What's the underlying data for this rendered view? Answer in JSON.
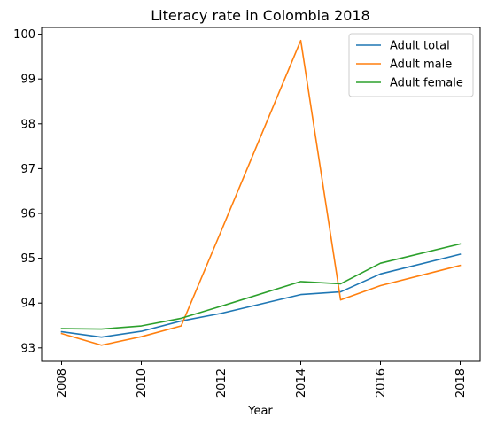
{
  "chart_data": {
    "type": "line",
    "title": "Literacy rate in Colombia 2018",
    "xlabel": "Year",
    "ylabel": "",
    "x": [
      2008,
      2009,
      2010,
      2011,
      2012,
      2014,
      2015,
      2016,
      2018
    ],
    "xticks": [
      "2008",
      "2010",
      "2012",
      "2014",
      "2016",
      "2018"
    ],
    "yticks": [
      "93",
      "94",
      "95",
      "96",
      "97",
      "98",
      "99",
      "100"
    ],
    "xlim": [
      2007.5,
      2018.5
    ],
    "ylim": [
      92.7,
      100.15
    ],
    "legend_position": "top-right",
    "grid": false,
    "series": [
      {
        "name": "Adult total",
        "color": "#1f77b4",
        "values": [
          93.36,
          93.24,
          93.37,
          93.6,
          93.77,
          94.19,
          94.25,
          94.65,
          95.09
        ]
      },
      {
        "name": "Adult male",
        "color": "#ff7f0e",
        "values": [
          93.32,
          93.06,
          93.25,
          93.49,
          95.6,
          99.86,
          94.07,
          94.39,
          94.84
        ]
      },
      {
        "name": "Adult female",
        "color": "#2ca02c",
        "values": [
          93.43,
          93.42,
          93.49,
          93.66,
          93.93,
          94.48,
          94.43,
          94.89,
          95.32
        ]
      }
    ]
  }
}
